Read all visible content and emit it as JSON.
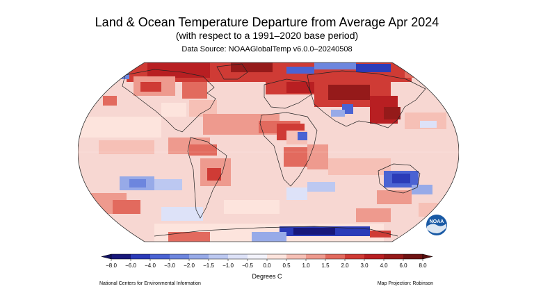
{
  "header": {
    "title": "Land & Ocean Temperature Departure from Average Apr 2024",
    "subtitle": "(with respect to a 1991–2020 base period)",
    "source": "Data Source: NOAAGlobalTemp v6.0.0–20240508"
  },
  "map": {
    "projection_label": "Map Projection: Robinson",
    "ocean_base_color": "#f7d7d2",
    "coast_color": "#222222"
  },
  "legend": {
    "units": "Degrees C",
    "ticks": [
      "−8.0",
      "−6.0",
      "−4.0",
      "−3.0",
      "−2.0",
      "−1.5",
      "−1.0",
      "−0.5",
      "0.0",
      "0.5",
      "1.0",
      "1.5",
      "2.0",
      "3.0",
      "4.0",
      "6.0",
      "8.0"
    ],
    "colors": [
      "#18187a",
      "#2b3bb8",
      "#4a63d3",
      "#6d86de",
      "#97aae8",
      "#bcc8f1",
      "#dde2f8",
      "#f3f3fb",
      "#fde4dd",
      "#f6c0b6",
      "#ee9a8e",
      "#e26a5e",
      "#cf3b35",
      "#b81f22",
      "#951a1a",
      "#6e1313"
    ],
    "low_end_color": "#121262",
    "high_end_color": "#5a0f0f"
  },
  "footer": {
    "credit": "National Centers for Environmental Information"
  },
  "logo": {
    "icon": "noaa-logo-icon",
    "text": "NOAA",
    "color": "#1a5aa5"
  }
}
